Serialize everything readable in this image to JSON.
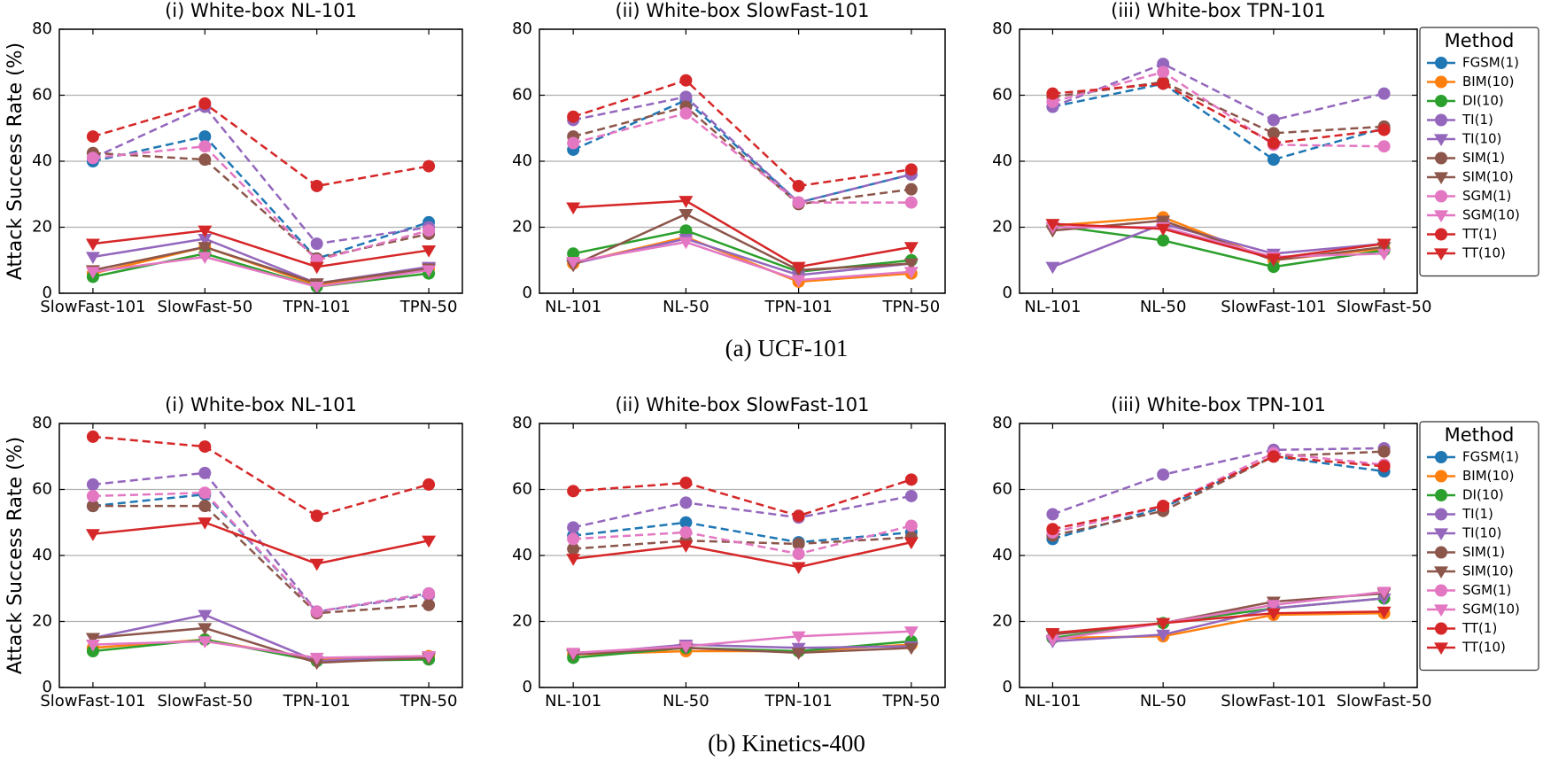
{
  "captions": [
    "(a) UCF-101",
    "(b) Kinetics-400"
  ],
  "chart_data": [
    {
      "type": "line",
      "title": "(i) White-box NL-101",
      "ylabel": "Attack Success Rate (%)",
      "categories": [
        "SlowFast-101",
        "SlowFast-50",
        "TPN-101",
        "TPN-50"
      ],
      "ylim": [
        0,
        80
      ],
      "yticks": [
        0,
        20,
        40,
        60,
        80
      ],
      "grid": true,
      "series": [
        {
          "name": "FGSM(1)",
          "color": "#1f77b4",
          "marker": "circle",
          "linestyle": "dashed",
          "values": [
            40,
            47.5,
            10.5,
            21.5
          ]
        },
        {
          "name": "BIM(10)",
          "color": "#ff7f0e",
          "marker": "circle",
          "linestyle": "solid",
          "values": [
            6,
            14,
            2.5,
            7.5
          ]
        },
        {
          "name": "DI(10)",
          "color": "#2ca02c",
          "marker": "circle",
          "linestyle": "solid",
          "values": [
            5,
            12,
            2,
            6
          ]
        },
        {
          "name": "TI(1)",
          "color": "#9467bd",
          "marker": "circle",
          "linestyle": "dashed",
          "values": [
            41,
            56.5,
            15,
            20
          ]
        },
        {
          "name": "TI(10)",
          "color": "#9467bd",
          "marker": "triangle-down",
          "linestyle": "solid",
          "values": [
            11,
            16.5,
            3,
            8
          ]
        },
        {
          "name": "SIM(1)",
          "color": "#8c564b",
          "marker": "circle",
          "linestyle": "dashed",
          "values": [
            42.5,
            40.5,
            10.5,
            18
          ]
        },
        {
          "name": "SIM(10)",
          "color": "#8c564b",
          "marker": "triangle-down",
          "linestyle": "solid",
          "values": [
            7,
            14,
            3,
            7.5
          ]
        },
        {
          "name": "SGM(1)",
          "color": "#e377c2",
          "marker": "circle",
          "linestyle": "dashed",
          "values": [
            41,
            44.5,
            10,
            19
          ]
        },
        {
          "name": "SGM(10)",
          "color": "#e377c2",
          "marker": "triangle-down",
          "linestyle": "solid",
          "values": [
            6.5,
            11,
            2,
            7
          ]
        },
        {
          "name": "TT(1)",
          "color": "#d62728",
          "marker": "circle",
          "linestyle": "dashed",
          "values": [
            47.5,
            57.5,
            32.5,
            38.5
          ]
        },
        {
          "name": "TT(10)",
          "color": "#d62728",
          "marker": "triangle-down",
          "linestyle": "solid",
          "values": [
            15,
            19,
            8,
            13
          ]
        }
      ]
    },
    {
      "type": "line",
      "title": "(ii) White-box SlowFast-101",
      "categories": [
        "NL-101",
        "NL-50",
        "TPN-101",
        "TPN-50"
      ],
      "ylim": [
        0,
        80
      ],
      "yticks": [
        0,
        20,
        40,
        60,
        80
      ],
      "grid": true,
      "series": [
        {
          "name": "FGSM(1)",
          "color": "#1f77b4",
          "marker": "circle",
          "linestyle": "dashed",
          "values": [
            43.5,
            58.5,
            27.5,
            36
          ]
        },
        {
          "name": "BIM(10)",
          "color": "#ff7f0e",
          "marker": "circle",
          "linestyle": "solid",
          "values": [
            9,
            17,
            3.5,
            6
          ]
        },
        {
          "name": "DI(10)",
          "color": "#2ca02c",
          "marker": "circle",
          "linestyle": "solid",
          "values": [
            12,
            19,
            6.5,
            10
          ]
        },
        {
          "name": "TI(1)",
          "color": "#9467bd",
          "marker": "circle",
          "linestyle": "dashed",
          "values": [
            52.5,
            59.5,
            27.5,
            36
          ]
        },
        {
          "name": "TI(10)",
          "color": "#9467bd",
          "marker": "triangle-down",
          "linestyle": "solid",
          "values": [
            9,
            16.5,
            5.5,
            9
          ]
        },
        {
          "name": "SIM(1)",
          "color": "#8c564b",
          "marker": "circle",
          "linestyle": "dashed",
          "values": [
            47.5,
            56.5,
            27,
            31.5
          ]
        },
        {
          "name": "SIM(10)",
          "color": "#8c564b",
          "marker": "triangle-down",
          "linestyle": "solid",
          "values": [
            8.5,
            24,
            7,
            9
          ]
        },
        {
          "name": "SGM(1)",
          "color": "#e377c2",
          "marker": "circle",
          "linestyle": "dashed",
          "values": [
            45.5,
            54.5,
            27.5,
            27.5
          ]
        },
        {
          "name": "SGM(10)",
          "color": "#e377c2",
          "marker": "triangle-down",
          "linestyle": "solid",
          "values": [
            9.5,
            15.5,
            4,
            6.5
          ]
        },
        {
          "name": "TT(1)",
          "color": "#d62728",
          "marker": "circle",
          "linestyle": "dashed",
          "values": [
            53.5,
            64.5,
            32.5,
            37.5
          ]
        },
        {
          "name": "TT(10)",
          "color": "#d62728",
          "marker": "triangle-down",
          "linestyle": "solid",
          "values": [
            26,
            28,
            8,
            14
          ]
        }
      ]
    },
    {
      "type": "line",
      "title": "(iii) White-box TPN-101",
      "legend_title": "Method",
      "categories": [
        "NL-101",
        "NL-50",
        "SlowFast-101",
        "SlowFast-50"
      ],
      "ylim": [
        0,
        80
      ],
      "yticks": [
        0,
        20,
        40,
        60,
        80
      ],
      "grid": true,
      "series": [
        {
          "name": "FGSM(1)",
          "color": "#1f77b4",
          "marker": "circle",
          "linestyle": "dashed",
          "values": [
            56.5,
            63.5,
            40.5,
            50
          ]
        },
        {
          "name": "BIM(10)",
          "color": "#ff7f0e",
          "marker": "circle",
          "linestyle": "solid",
          "values": [
            20.5,
            23,
            10,
            13.5
          ]
        },
        {
          "name": "DI(10)",
          "color": "#2ca02c",
          "marker": "circle",
          "linestyle": "solid",
          "values": [
            20.5,
            16,
            8,
            13
          ]
        },
        {
          "name": "TI(1)",
          "color": "#9467bd",
          "marker": "circle",
          "linestyle": "dashed",
          "values": [
            56.5,
            69.5,
            52.5,
            60.5
          ]
        },
        {
          "name": "TI(10)",
          "color": "#9467bd",
          "marker": "triangle-down",
          "linestyle": "solid",
          "values": [
            8,
            21,
            12,
            15
          ]
        },
        {
          "name": "SIM(1)",
          "color": "#8c564b",
          "marker": "circle",
          "linestyle": "dashed",
          "values": [
            59.5,
            64,
            48.5,
            50.5
          ]
        },
        {
          "name": "SIM(10)",
          "color": "#8c564b",
          "marker": "triangle-down",
          "linestyle": "solid",
          "values": [
            19,
            22,
            10,
            14
          ]
        },
        {
          "name": "SGM(1)",
          "color": "#e377c2",
          "marker": "circle",
          "linestyle": "dashed",
          "values": [
            58,
            67,
            45,
            44.5
          ]
        },
        {
          "name": "SGM(10)",
          "color": "#e377c2",
          "marker": "triangle-down",
          "linestyle": "solid",
          "values": [
            20,
            20,
            11,
            12
          ]
        },
        {
          "name": "TT(1)",
          "color": "#d62728",
          "marker": "circle",
          "linestyle": "dashed",
          "values": [
            60.5,
            63.5,
            45.5,
            49.5
          ]
        },
        {
          "name": "TT(10)",
          "color": "#d62728",
          "marker": "triangle-down",
          "linestyle": "solid",
          "values": [
            21,
            19.5,
            10.5,
            15
          ]
        }
      ]
    },
    {
      "type": "line",
      "title": "(i) White-box NL-101",
      "ylabel": "Attack Success Rate (%)",
      "categories": [
        "SlowFast-101",
        "SlowFast-50",
        "TPN-101",
        "TPN-50"
      ],
      "ylim": [
        0,
        80
      ],
      "yticks": [
        0,
        20,
        40,
        60,
        80
      ],
      "grid": true,
      "series": [
        {
          "name": "FGSM(1)",
          "color": "#1f77b4",
          "marker": "circle",
          "linestyle": "dashed",
          "values": [
            55,
            58.5,
            23,
            28.5
          ]
        },
        {
          "name": "BIM(10)",
          "color": "#ff7f0e",
          "marker": "circle",
          "linestyle": "solid",
          "values": [
            12,
            14.5,
            8.5,
            9.5
          ]
        },
        {
          "name": "DI(10)",
          "color": "#2ca02c",
          "marker": "circle",
          "linestyle": "solid",
          "values": [
            11,
            14.5,
            8,
            8.5
          ]
        },
        {
          "name": "TI(1)",
          "color": "#9467bd",
          "marker": "circle",
          "linestyle": "dashed",
          "values": [
            61.5,
            65,
            23,
            28
          ]
        },
        {
          "name": "TI(10)",
          "color": "#9467bd",
          "marker": "triangle-down",
          "linestyle": "solid",
          "values": [
            15,
            22,
            8,
            9.5
          ]
        },
        {
          "name": "SIM(1)",
          "color": "#8c564b",
          "marker": "circle",
          "linestyle": "dashed",
          "values": [
            55,
            55,
            22.5,
            25
          ]
        },
        {
          "name": "SIM(10)",
          "color": "#8c564b",
          "marker": "triangle-down",
          "linestyle": "solid",
          "values": [
            15,
            18,
            7.5,
            9
          ]
        },
        {
          "name": "SGM(1)",
          "color": "#e377c2",
          "marker": "circle",
          "linestyle": "dashed",
          "values": [
            58,
            59,
            23,
            28.5
          ]
        },
        {
          "name": "SGM(10)",
          "color": "#e377c2",
          "marker": "triangle-down",
          "linestyle": "solid",
          "values": [
            13,
            14,
            9,
            9.5
          ]
        },
        {
          "name": "TT(1)",
          "color": "#d62728",
          "marker": "circle",
          "linestyle": "dashed",
          "values": [
            76,
            73,
            52,
            61.5
          ]
        },
        {
          "name": "TT(10)",
          "color": "#d62728",
          "marker": "triangle-down",
          "linestyle": "solid",
          "values": [
            46.5,
            50,
            37.5,
            44.5
          ]
        }
      ]
    },
    {
      "type": "line",
      "title": "(ii) White-box SlowFast-101",
      "categories": [
        "NL-101",
        "NL-50",
        "TPN-101",
        "TPN-50"
      ],
      "ylim": [
        0,
        80
      ],
      "yticks": [
        0,
        20,
        40,
        60,
        80
      ],
      "grid": true,
      "series": [
        {
          "name": "FGSM(1)",
          "color": "#1f77b4",
          "marker": "circle",
          "linestyle": "dashed",
          "values": [
            46,
            50,
            44,
            47
          ]
        },
        {
          "name": "BIM(10)",
          "color": "#ff7f0e",
          "marker": "circle",
          "linestyle": "solid",
          "values": [
            10,
            11,
            11,
            13
          ]
        },
        {
          "name": "DI(10)",
          "color": "#2ca02c",
          "marker": "circle",
          "linestyle": "solid",
          "values": [
            9,
            12,
            11,
            14
          ]
        },
        {
          "name": "TI(1)",
          "color": "#9467bd",
          "marker": "circle",
          "linestyle": "dashed",
          "values": [
            48.5,
            56,
            51.5,
            58
          ]
        },
        {
          "name": "TI(10)",
          "color": "#9467bd",
          "marker": "triangle-down",
          "linestyle": "solid",
          "values": [
            10,
            13,
            12,
            12.5
          ]
        },
        {
          "name": "SIM(1)",
          "color": "#8c564b",
          "marker": "circle",
          "linestyle": "dashed",
          "values": [
            42,
            44.5,
            43.5,
            45.5
          ]
        },
        {
          "name": "SIM(10)",
          "color": "#8c564b",
          "marker": "triangle-down",
          "linestyle": "solid",
          "values": [
            10,
            12,
            10.5,
            12
          ]
        },
        {
          "name": "SGM(1)",
          "color": "#e377c2",
          "marker": "circle",
          "linestyle": "dashed",
          "values": [
            45,
            47,
            40.5,
            49
          ]
        },
        {
          "name": "SGM(10)",
          "color": "#e377c2",
          "marker": "triangle-down",
          "linestyle": "solid",
          "values": [
            10.5,
            12.5,
            15.5,
            17
          ]
        },
        {
          "name": "TT(1)",
          "color": "#d62728",
          "marker": "circle",
          "linestyle": "dashed",
          "values": [
            59.5,
            62,
            52,
            63
          ]
        },
        {
          "name": "TT(10)",
          "color": "#d62728",
          "marker": "triangle-down",
          "linestyle": "solid",
          "values": [
            39,
            43,
            36.5,
            44
          ]
        }
      ]
    },
    {
      "type": "line",
      "title": "(iii) White-box TPN-101",
      "legend_title": "Method",
      "categories": [
        "NL-101",
        "NL-50",
        "SlowFast-101",
        "SlowFast-50"
      ],
      "ylim": [
        0,
        80
      ],
      "yticks": [
        0,
        20,
        40,
        60,
        80
      ],
      "grid": true,
      "series": [
        {
          "name": "FGSM(1)",
          "color": "#1f77b4",
          "marker": "circle",
          "linestyle": "dashed",
          "values": [
            45,
            54.5,
            70,
            65.5
          ]
        },
        {
          "name": "BIM(10)",
          "color": "#ff7f0e",
          "marker": "circle",
          "linestyle": "solid",
          "values": [
            15,
            15.5,
            22,
            22.5
          ]
        },
        {
          "name": "DI(10)",
          "color": "#2ca02c",
          "marker": "circle",
          "linestyle": "solid",
          "values": [
            15,
            19.5,
            24,
            27
          ]
        },
        {
          "name": "TI(1)",
          "color": "#9467bd",
          "marker": "circle",
          "linestyle": "dashed",
          "values": [
            52.5,
            64.5,
            72,
            72.5
          ]
        },
        {
          "name": "TI(10)",
          "color": "#9467bd",
          "marker": "triangle-down",
          "linestyle": "solid",
          "values": [
            14,
            16,
            24,
            27
          ]
        },
        {
          "name": "SIM(1)",
          "color": "#8c564b",
          "marker": "circle",
          "linestyle": "dashed",
          "values": [
            46,
            53.5,
            70,
            71.5
          ]
        },
        {
          "name": "SIM(10)",
          "color": "#8c564b",
          "marker": "triangle-down",
          "linestyle": "solid",
          "values": [
            16,
            19.5,
            26,
            28.5
          ]
        },
        {
          "name": "SGM(1)",
          "color": "#e377c2",
          "marker": "circle",
          "linestyle": "dashed",
          "values": [
            47,
            55,
            71,
            67.5
          ]
        },
        {
          "name": "SGM(10)",
          "color": "#e377c2",
          "marker": "triangle-down",
          "linestyle": "solid",
          "values": [
            14.5,
            19.5,
            25,
            29
          ]
        },
        {
          "name": "TT(1)",
          "color": "#d62728",
          "marker": "circle",
          "linestyle": "dashed",
          "values": [
            48,
            55,
            70,
            67
          ]
        },
        {
          "name": "TT(10)",
          "color": "#d62728",
          "marker": "triangle-down",
          "linestyle": "solid",
          "values": [
            16.5,
            19.5,
            22.5,
            23
          ]
        }
      ]
    }
  ]
}
